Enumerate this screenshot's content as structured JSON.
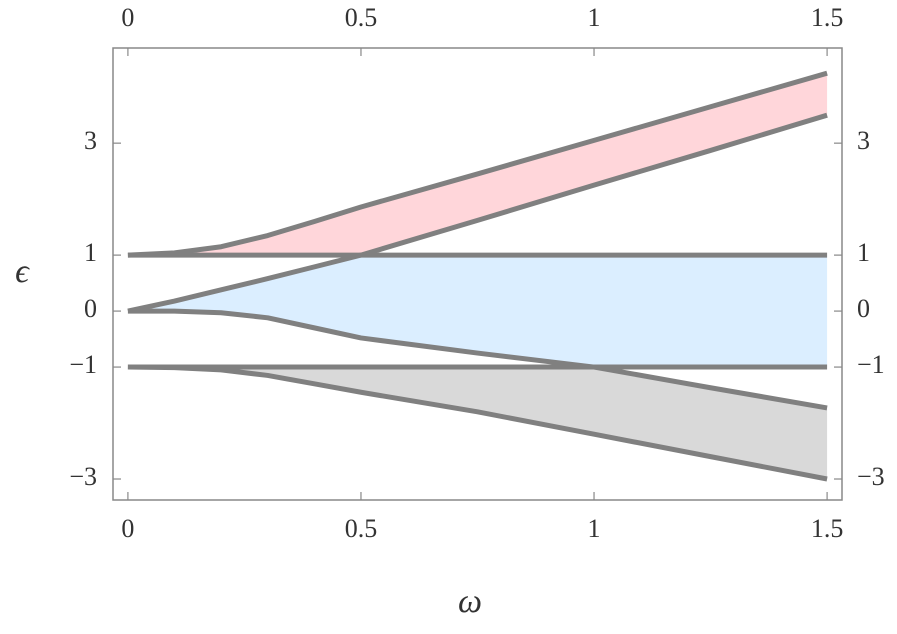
{
  "chart_data": {
    "type": "line",
    "x_label": "ω",
    "y_label": "ϵ",
    "x": [
      0,
      0.1,
      0.2,
      0.3,
      0.4,
      0.5,
      0.75,
      1,
      1.25,
      1.5
    ],
    "series": [
      {
        "color": "#808080",
        "values": [
          1,
          1.04,
          1.15,
          1.35,
          1.6,
          1.86,
          2.45,
          3.05,
          3.65,
          4.25
        ]
      },
      {
        "color": "#808080",
        "values": [
          1,
          1,
          1,
          1,
          1,
          1,
          1,
          1,
          1,
          1
        ]
      },
      {
        "color": "#808080",
        "values": [
          0,
          0.18,
          0.38,
          0.58,
          0.79,
          1,
          1.62,
          2.25,
          2.87,
          3.5
        ]
      },
      {
        "color": "#808080",
        "values": [
          0,
          0,
          -0.03,
          -0.12,
          -0.3,
          -0.48,
          -0.75,
          -1,
          -1.37,
          -1.73
        ]
      },
      {
        "color": "#808080",
        "values": [
          -1,
          -1,
          -1,
          -1,
          -1,
          -1,
          -1,
          -1,
          -1,
          -1
        ]
      },
      {
        "color": "#808080",
        "values": [
          -1,
          -1.01,
          -1.05,
          -1.15,
          -1.3,
          -1.45,
          -1.8,
          -2.2,
          -2.6,
          -3
        ]
      }
    ],
    "fills": [
      "#ffd6da",
      "#dbeeff",
      "#d9d9d9"
    ],
    "xlim": [
      -0.032,
      1.532
    ],
    "ylim": [
      -3.375,
      4.7
    ],
    "xticks": [
      0,
      0.5,
      1,
      1.5
    ],
    "yticks": [
      {
        "value": -3,
        "label": "−3"
      },
      {
        "value": -1,
        "label": "−1"
      },
      0,
      1,
      3
    ]
  }
}
